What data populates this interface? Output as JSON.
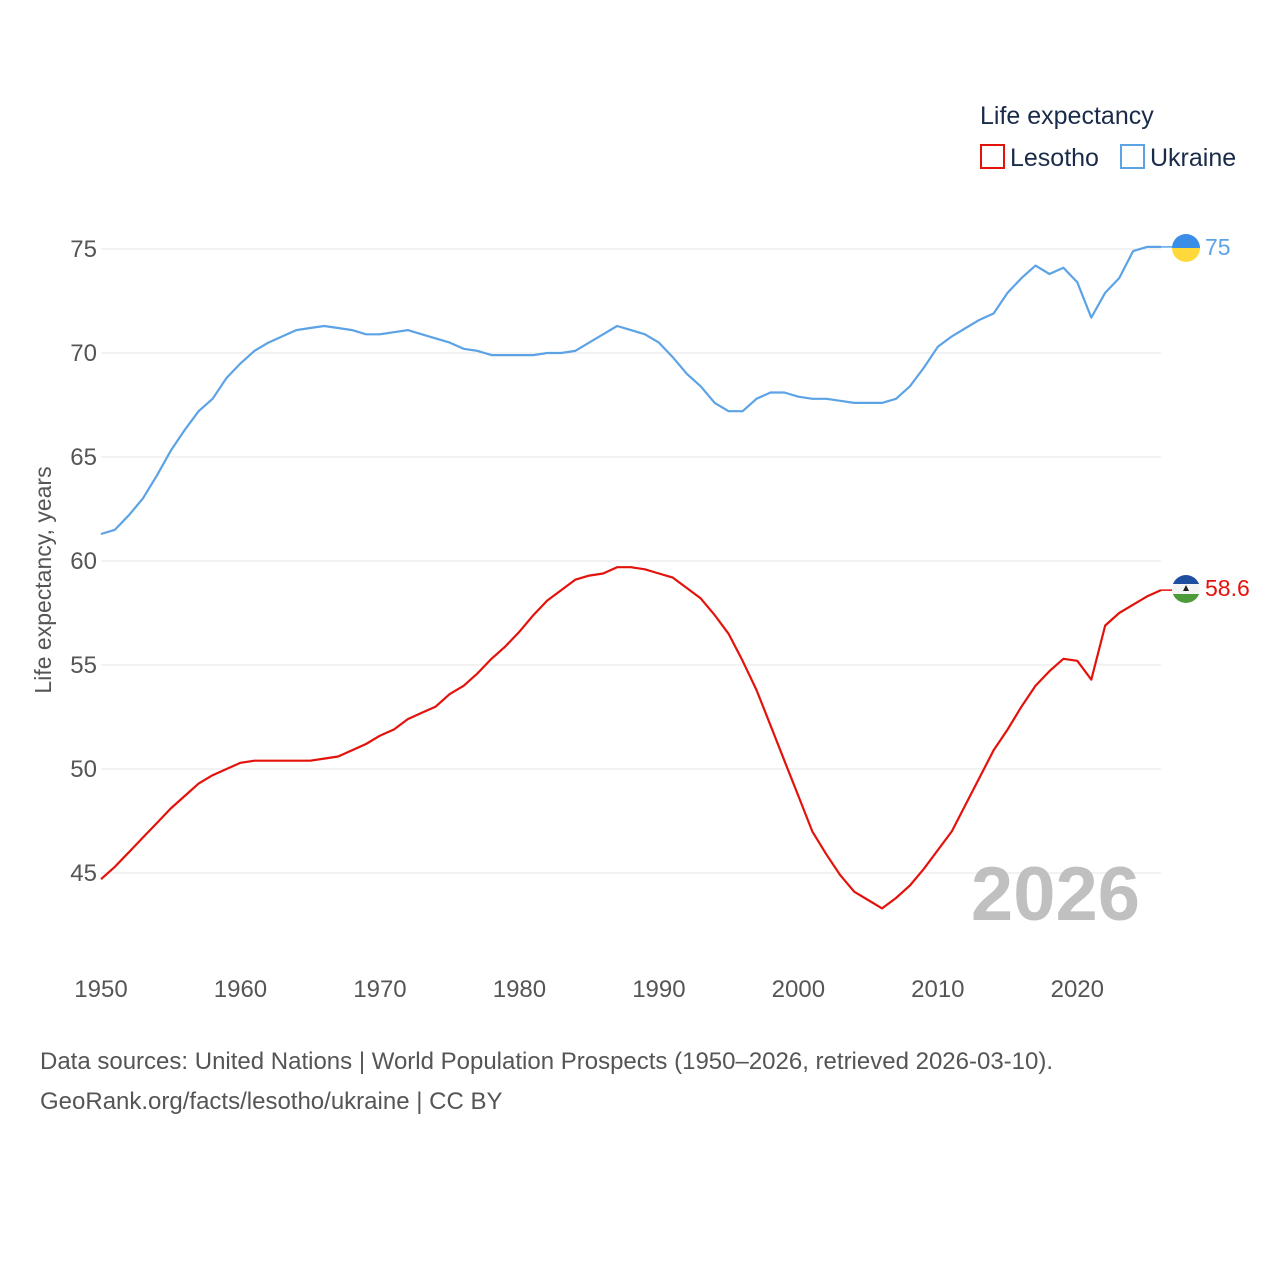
{
  "chart_data": {
    "type": "line",
    "legend_title": "Life expectancy",
    "ylabel": "Life expectancy, years",
    "xlabel": "",
    "xlim": [
      1950,
      2026
    ],
    "ylim": [
      41.5,
      77.5
    ],
    "x_ticks": [
      "1950",
      "1960",
      "1970",
      "1980",
      "1990",
      "2000",
      "2010",
      "2020"
    ],
    "y_ticks": [
      "45",
      "50",
      "55",
      "60",
      "65",
      "70",
      "75"
    ],
    "grid": true,
    "legend_position": "top-right",
    "year_watermark": "2026",
    "x": [
      1950,
      1951,
      1952,
      1953,
      1954,
      1955,
      1956,
      1957,
      1958,
      1959,
      1960,
      1961,
      1962,
      1963,
      1964,
      1965,
      1966,
      1967,
      1968,
      1969,
      1970,
      1971,
      1972,
      1973,
      1974,
      1975,
      1976,
      1977,
      1978,
      1979,
      1980,
      1981,
      1982,
      1983,
      1984,
      1985,
      1986,
      1987,
      1988,
      1989,
      1990,
      1991,
      1992,
      1993,
      1994,
      1995,
      1996,
      1997,
      1998,
      1999,
      2000,
      2001,
      2002,
      2003,
      2004,
      2005,
      2006,
      2007,
      2008,
      2009,
      2010,
      2011,
      2012,
      2013,
      2014,
      2015,
      2016,
      2017,
      2018,
      2019,
      2020,
      2021,
      2022,
      2023,
      2024,
      2025,
      2026
    ],
    "series": [
      {
        "name": "Lesotho",
        "color": "#e3120b",
        "end_label": "58.6",
        "flag": "lesotho",
        "values": [
          44.7,
          45.3,
          46.0,
          46.7,
          47.4,
          48.1,
          48.7,
          49.3,
          49.7,
          50.0,
          50.3,
          50.4,
          50.4,
          50.4,
          50.4,
          50.4,
          50.5,
          50.6,
          50.9,
          51.2,
          51.6,
          51.9,
          52.4,
          52.7,
          53.0,
          53.6,
          54.0,
          54.6,
          55.3,
          55.9,
          56.6,
          57.4,
          58.1,
          58.6,
          59.1,
          59.3,
          59.4,
          59.7,
          59.7,
          59.6,
          59.4,
          59.2,
          58.7,
          58.2,
          57.4,
          56.5,
          55.2,
          53.8,
          52.1,
          50.4,
          48.7,
          47.0,
          45.9,
          44.9,
          44.1,
          43.7,
          43.3,
          43.8,
          44.4,
          45.2,
          46.1,
          47.0,
          48.3,
          49.6,
          50.9,
          51.9,
          53.0,
          54.0,
          54.7,
          55.3,
          55.2,
          54.3,
          56.9,
          57.5,
          57.9,
          58.3,
          58.6
        ]
      },
      {
        "name": "Ukraine",
        "color": "#5ca3e6",
        "end_label": "75",
        "flag": "ukraine",
        "values": [
          61.3,
          61.5,
          62.2,
          63.0,
          64.1,
          65.3,
          66.3,
          67.2,
          67.8,
          68.8,
          69.5,
          70.1,
          70.5,
          70.8,
          71.1,
          71.2,
          71.3,
          71.2,
          71.1,
          70.9,
          70.9,
          71.0,
          71.1,
          70.9,
          70.7,
          70.5,
          70.2,
          70.1,
          69.9,
          69.9,
          69.9,
          69.9,
          70.0,
          70.0,
          70.1,
          70.5,
          70.9,
          71.3,
          71.1,
          70.9,
          70.5,
          69.8,
          69.0,
          68.4,
          67.6,
          67.2,
          67.2,
          67.8,
          68.1,
          68.1,
          67.9,
          67.8,
          67.8,
          67.7,
          67.6,
          67.6,
          67.6,
          67.8,
          68.4,
          69.3,
          70.3,
          70.8,
          71.2,
          71.6,
          71.9,
          72.9,
          73.6,
          74.2,
          73.8,
          74.1,
          73.4,
          71.7,
          72.9,
          73.6,
          74.9,
          75.1,
          75.1
        ]
      }
    ]
  },
  "footer": {
    "line1": "Data sources: United Nations | World Population Prospects (1950–2026, retrieved 2026-03-10).",
    "line2": "GeoRank.org/facts/lesotho/ukraine | CC BY"
  }
}
